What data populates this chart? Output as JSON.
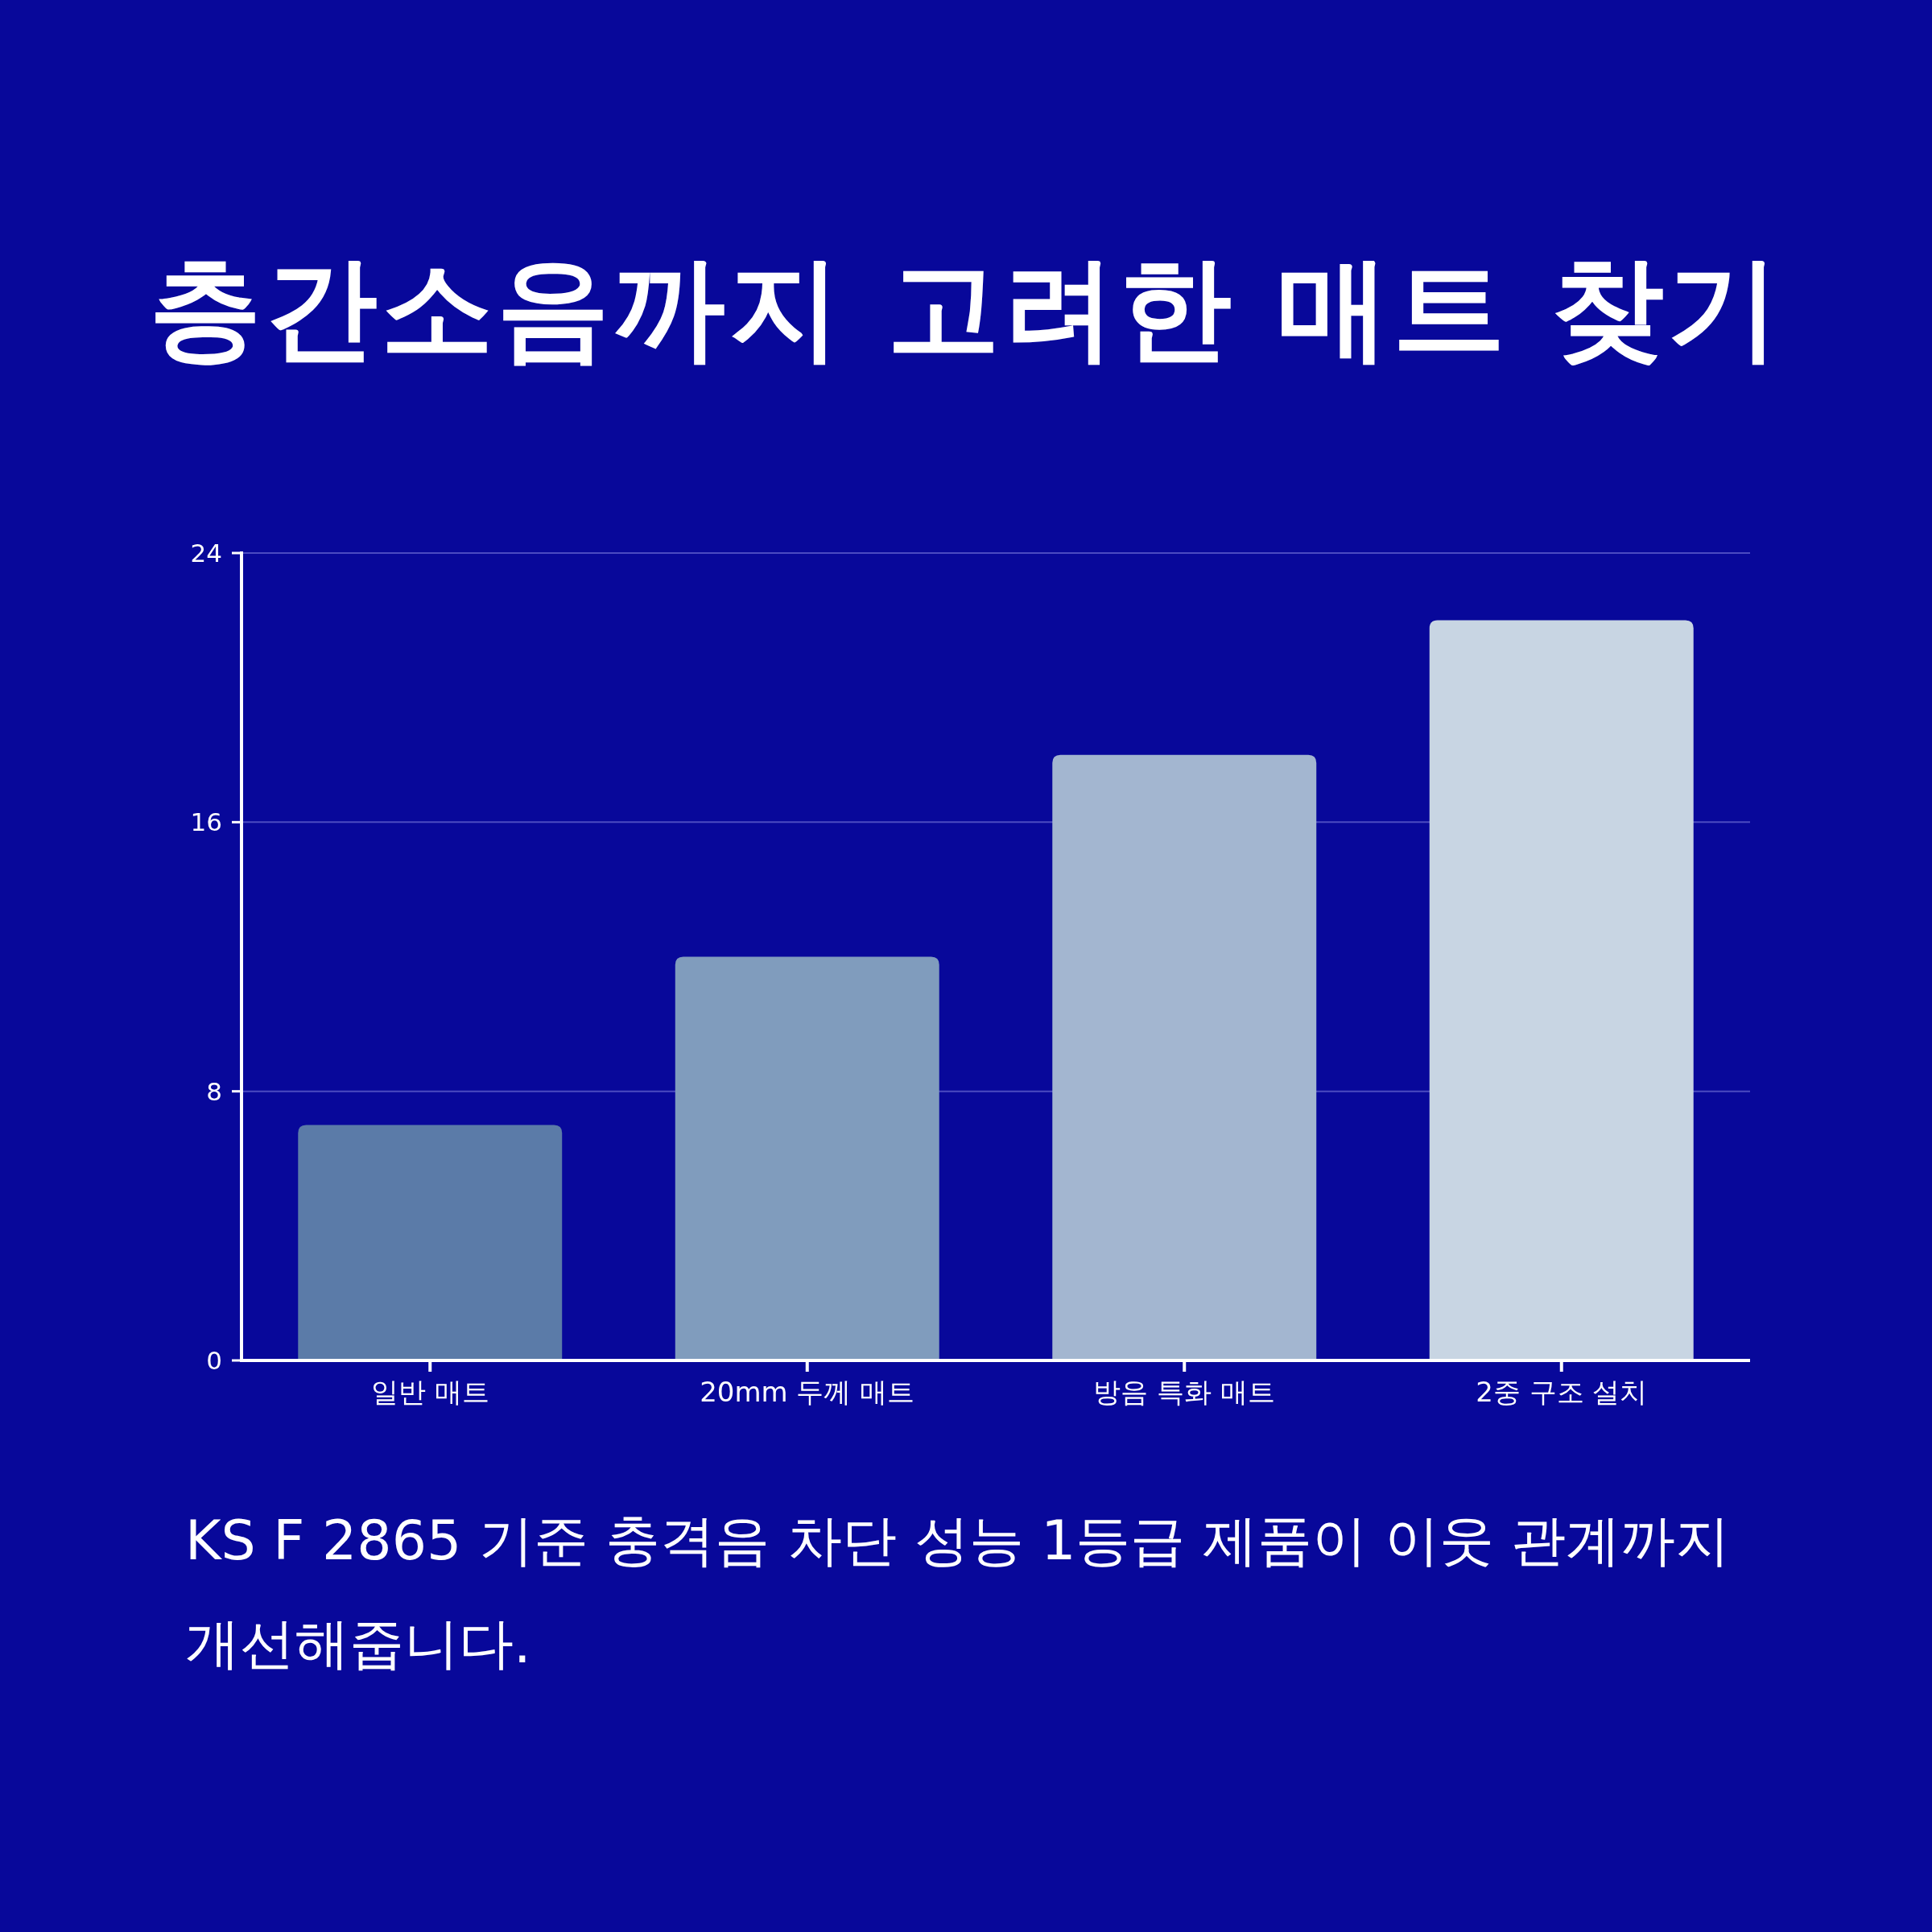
{
  "chart_data": {
    "type": "bar",
    "title": "층간소음까지 고려한 매트 찾기",
    "categories": [
      "일반 매트",
      "20mm 두께 매트",
      "방음 특화 매트",
      "2중 구조 설치"
    ],
    "values": [
      7,
      12,
      18,
      22
    ],
    "colors": [
      "#5b7ba8",
      "#809cbd",
      "#a3b6d0",
      "#c8d5e3"
    ],
    "ylim": [
      0,
      24
    ],
    "yticks": [
      0,
      8,
      16,
      24
    ],
    "grid": "y",
    "annotations": [
      "KS F 2865 기준 충격음 차단 성능 1등급 제품이 이웃 관계까지 개선해줍니다."
    ]
  }
}
